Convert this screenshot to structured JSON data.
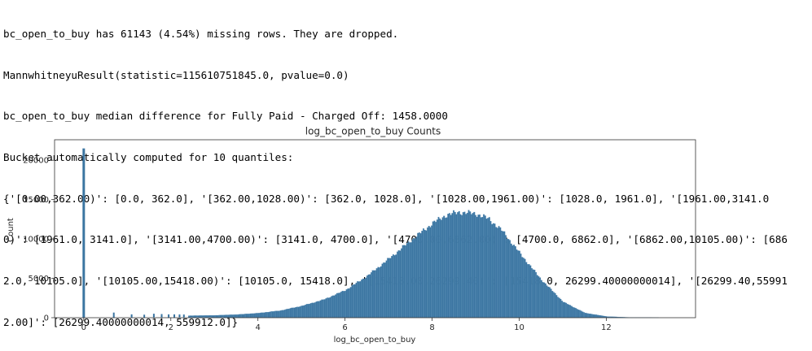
{
  "output_lines": [
    "bc_open_to_buy has 61143 (4.54%) missing rows. They are dropped.",
    "MannwhitneyuResult(statistic=115610751845.0, pvalue=0.0)",
    "bc_open_to_buy median difference for Fully Paid - Charged Off: 1458.0000",
    "Bucket automatically computed for 10 quantiles:",
    "{'[0.00,362.00)': [0.0, 362.0], '[362.00,1028.00)': [362.0, 1028.0], '[1028.00,1961.00)': [1028.0, 1961.0], '[1961.00,3141.0",
    "0)': [1961.0, 3141.0], '[3141.00,4700.00)': [3141.0, 4700.0], '[4700.00,6862.00)': [4700.0, 6862.0], '[6862.00,10105.00)': [686",
    "2.0, 10105.0], '[10105.00,15418.00)': [10105.0, 15418.0], '[15418.00,26299.40)': [15418.0, 26299.40000000014], '[26299.40,55991",
    "2.00]': [26299.40000000014, 559912.0]}"
  ],
  "chart_data": {
    "type": "bar",
    "title": "log_bc_open_to_buy Counts",
    "xlabel": "log_bc_open_to_buy",
    "ylabel": "Count",
    "xlim": [
      -0.67,
      14.05
    ],
    "ylim": [
      0,
      22600
    ],
    "xticks": [
      0,
      2,
      4,
      6,
      8,
      10,
      12
    ],
    "yticks": [
      0,
      5000,
      10000,
      15000,
      20000
    ],
    "bar_color": "#3b75a1",
    "bar_edge_color": "#5b8fb8",
    "zero_spike": {
      "x": 0.0,
      "value": 21500
    },
    "isolated_bars": [
      {
        "x": 0.69,
        "value": 650
      },
      {
        "x": 1.1,
        "value": 420
      },
      {
        "x": 1.39,
        "value": 380
      },
      {
        "x": 1.61,
        "value": 500
      },
      {
        "x": 1.79,
        "value": 460
      },
      {
        "x": 1.95,
        "value": 420
      },
      {
        "x": 2.08,
        "value": 420
      },
      {
        "x": 2.2,
        "value": 410
      },
      {
        "x": 2.3,
        "value": 400
      }
    ],
    "distribution": {
      "x": [
        2.4,
        3.0,
        3.5,
        4.0,
        4.5,
        5.0,
        5.5,
        6.0,
        6.5,
        7.0,
        7.5,
        8.0,
        8.3,
        8.6,
        9.0,
        9.3,
        9.6,
        10.0,
        10.5,
        11.0,
        11.5,
        12.0,
        12.5,
        13.2
      ],
      "values": [
        250,
        300,
        400,
        580,
        900,
        1500,
        2300,
        3500,
        5300,
        7500,
        9800,
        12000,
        13000,
        13400,
        13200,
        12500,
        11000,
        8200,
        4800,
        2000,
        600,
        150,
        40,
        5
      ]
    }
  }
}
